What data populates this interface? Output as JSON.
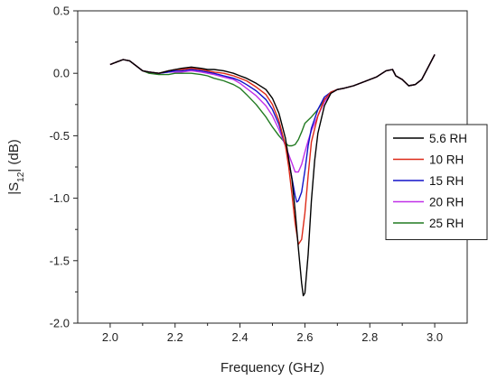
{
  "chart_data": {
    "type": "line",
    "title": "",
    "xlabel": "Frequency (GHz)",
    "ylabel_main": "|S",
    "ylabel_sub": "12",
    "ylabel_tail": "| (dB)",
    "xlim": [
      1.9,
      3.1
    ],
    "ylim": [
      -2.0,
      0.5
    ],
    "xticks": [
      "2.0",
      "2.2",
      "2.4",
      "2.6",
      "2.8",
      "3.0"
    ],
    "yticks": [
      "0.5",
      "0.0",
      "-0.5",
      "-1.0",
      "-1.5",
      "-2.0"
    ],
    "grid": false,
    "legend_position": "right",
    "series": [
      {
        "name": "5.6 RH",
        "color": "#000000",
        "x": [
          2.0,
          2.02,
          2.04,
          2.06,
          2.08,
          2.1,
          2.12,
          2.15,
          2.18,
          2.2,
          2.22,
          2.25,
          2.28,
          2.3,
          2.32,
          2.35,
          2.38,
          2.4,
          2.42,
          2.45,
          2.48,
          2.5,
          2.52,
          2.54,
          2.56,
          2.57,
          2.58,
          2.59,
          2.595,
          2.6,
          2.61,
          2.62,
          2.63,
          2.64,
          2.66,
          2.68,
          2.7,
          2.72,
          2.75,
          2.78,
          2.8,
          2.82,
          2.85,
          2.87,
          2.88,
          2.9,
          2.92,
          2.94,
          2.96,
          2.98,
          3.0
        ],
        "y": [
          0.07,
          0.09,
          0.11,
          0.1,
          0.06,
          0.02,
          0.01,
          0.0,
          0.02,
          0.03,
          0.04,
          0.05,
          0.04,
          0.03,
          0.03,
          0.02,
          0.0,
          -0.02,
          -0.04,
          -0.08,
          -0.13,
          -0.2,
          -0.32,
          -0.52,
          -0.85,
          -1.1,
          -1.4,
          -1.68,
          -1.78,
          -1.76,
          -1.45,
          -1.02,
          -0.7,
          -0.48,
          -0.26,
          -0.16,
          -0.13,
          -0.12,
          -0.1,
          -0.07,
          -0.05,
          -0.03,
          0.02,
          0.03,
          -0.02,
          -0.05,
          -0.1,
          -0.09,
          -0.05,
          0.05,
          0.15
        ]
      },
      {
        "name": "10 RH",
        "color": "#dd2a18",
        "x": [
          2.0,
          2.02,
          2.04,
          2.06,
          2.08,
          2.1,
          2.12,
          2.15,
          2.18,
          2.2,
          2.22,
          2.25,
          2.28,
          2.3,
          2.32,
          2.35,
          2.38,
          2.4,
          2.42,
          2.45,
          2.48,
          2.5,
          2.52,
          2.54,
          2.55,
          2.56,
          2.57,
          2.58,
          2.59,
          2.6,
          2.61,
          2.62,
          2.64,
          2.66,
          2.68,
          2.7,
          2.72,
          2.75,
          2.78,
          2.8,
          2.82,
          2.85,
          2.87,
          2.88,
          2.9,
          2.92,
          2.94,
          2.96,
          2.98,
          3.0
        ],
        "y": [
          0.07,
          0.09,
          0.11,
          0.1,
          0.06,
          0.02,
          0.01,
          0.0,
          0.02,
          0.03,
          0.03,
          0.04,
          0.03,
          0.02,
          0.01,
          0.0,
          -0.02,
          -0.04,
          -0.06,
          -0.11,
          -0.17,
          -0.25,
          -0.38,
          -0.58,
          -0.75,
          -0.97,
          -1.2,
          -1.37,
          -1.33,
          -1.12,
          -0.82,
          -0.55,
          -0.34,
          -0.21,
          -0.15,
          -0.13,
          -0.12,
          -0.1,
          -0.07,
          -0.05,
          -0.03,
          0.02,
          0.03,
          -0.02,
          -0.05,
          -0.1,
          -0.09,
          -0.05,
          0.05,
          0.15
        ]
      },
      {
        "name": "15 RH",
        "color": "#1212c9",
        "x": [
          2.0,
          2.02,
          2.04,
          2.06,
          2.08,
          2.1,
          2.12,
          2.15,
          2.18,
          2.2,
          2.22,
          2.25,
          2.28,
          2.3,
          2.32,
          2.35,
          2.38,
          2.4,
          2.42,
          2.45,
          2.48,
          2.5,
          2.52,
          2.54,
          2.55,
          2.56,
          2.57,
          2.575,
          2.58,
          2.59,
          2.6,
          2.61,
          2.62,
          2.64,
          2.66,
          2.68,
          2.7,
          2.72,
          2.75,
          2.78,
          2.8,
          2.82,
          2.85,
          2.87,
          2.88,
          2.9,
          2.92,
          2.94,
          2.96,
          2.98,
          3.0
        ],
        "y": [
          0.07,
          0.09,
          0.11,
          0.1,
          0.06,
          0.02,
          0.01,
          0.0,
          0.01,
          0.02,
          0.02,
          0.03,
          0.02,
          0.01,
          0.0,
          -0.02,
          -0.04,
          -0.06,
          -0.09,
          -0.14,
          -0.21,
          -0.29,
          -0.41,
          -0.58,
          -0.7,
          -0.84,
          -0.98,
          -1.03,
          -1.02,
          -0.95,
          -0.78,
          -0.58,
          -0.44,
          -0.29,
          -0.19,
          -0.15,
          -0.13,
          -0.12,
          -0.1,
          -0.07,
          -0.05,
          -0.03,
          0.02,
          0.03,
          -0.02,
          -0.05,
          -0.1,
          -0.09,
          -0.05,
          0.05,
          0.15
        ]
      },
      {
        "name": "20 RH",
        "color": "#c030e8",
        "x": [
          2.0,
          2.02,
          2.04,
          2.06,
          2.08,
          2.1,
          2.12,
          2.15,
          2.18,
          2.2,
          2.22,
          2.25,
          2.28,
          2.3,
          2.32,
          2.35,
          2.38,
          2.4,
          2.42,
          2.45,
          2.48,
          2.5,
          2.52,
          2.54,
          2.55,
          2.56,
          2.57,
          2.58,
          2.59,
          2.6,
          2.61,
          2.62,
          2.64,
          2.66,
          2.68,
          2.7,
          2.72,
          2.75,
          2.78,
          2.8,
          2.82,
          2.85,
          2.87,
          2.88,
          2.9,
          2.92,
          2.94,
          2.96,
          2.98,
          3.0
        ],
        "y": [
          0.07,
          0.09,
          0.11,
          0.1,
          0.06,
          0.02,
          0.01,
          0.0,
          0.01,
          0.01,
          0.01,
          0.02,
          0.01,
          0.0,
          -0.01,
          -0.03,
          -0.05,
          -0.08,
          -0.12,
          -0.18,
          -0.26,
          -0.34,
          -0.45,
          -0.58,
          -0.65,
          -0.72,
          -0.79,
          -0.79,
          -0.73,
          -0.63,
          -0.54,
          -0.46,
          -0.34,
          -0.23,
          -0.16,
          -0.13,
          -0.12,
          -0.1,
          -0.07,
          -0.05,
          -0.03,
          0.02,
          0.03,
          -0.02,
          -0.05,
          -0.1,
          -0.09,
          -0.05,
          0.05,
          0.15
        ]
      },
      {
        "name": "25 RH",
        "color": "#217a21",
        "x": [
          2.0,
          2.02,
          2.04,
          2.06,
          2.08,
          2.1,
          2.12,
          2.15,
          2.18,
          2.2,
          2.22,
          2.25,
          2.28,
          2.3,
          2.32,
          2.35,
          2.38,
          2.4,
          2.42,
          2.45,
          2.48,
          2.5,
          2.52,
          2.54,
          2.55,
          2.56,
          2.57,
          2.58,
          2.59,
          2.6,
          2.62,
          2.64,
          2.66,
          2.68,
          2.7,
          2.72,
          2.75,
          2.78,
          2.8,
          2.82,
          2.85,
          2.87,
          2.88,
          2.9,
          2.92,
          2.94,
          2.96,
          2.98,
          3.0
        ],
        "y": [
          0.07,
          0.09,
          0.11,
          0.1,
          0.06,
          0.02,
          0.0,
          -0.01,
          -0.01,
          0.0,
          0.0,
          0.0,
          -0.01,
          -0.02,
          -0.04,
          -0.06,
          -0.09,
          -0.12,
          -0.17,
          -0.25,
          -0.35,
          -0.43,
          -0.5,
          -0.56,
          -0.58,
          -0.58,
          -0.57,
          -0.53,
          -0.47,
          -0.4,
          -0.35,
          -0.29,
          -0.21,
          -0.16,
          -0.13,
          -0.12,
          -0.1,
          -0.07,
          -0.05,
          -0.03,
          0.02,
          0.03,
          -0.02,
          -0.05,
          -0.1,
          -0.09,
          -0.05,
          0.05,
          0.15
        ]
      }
    ]
  }
}
